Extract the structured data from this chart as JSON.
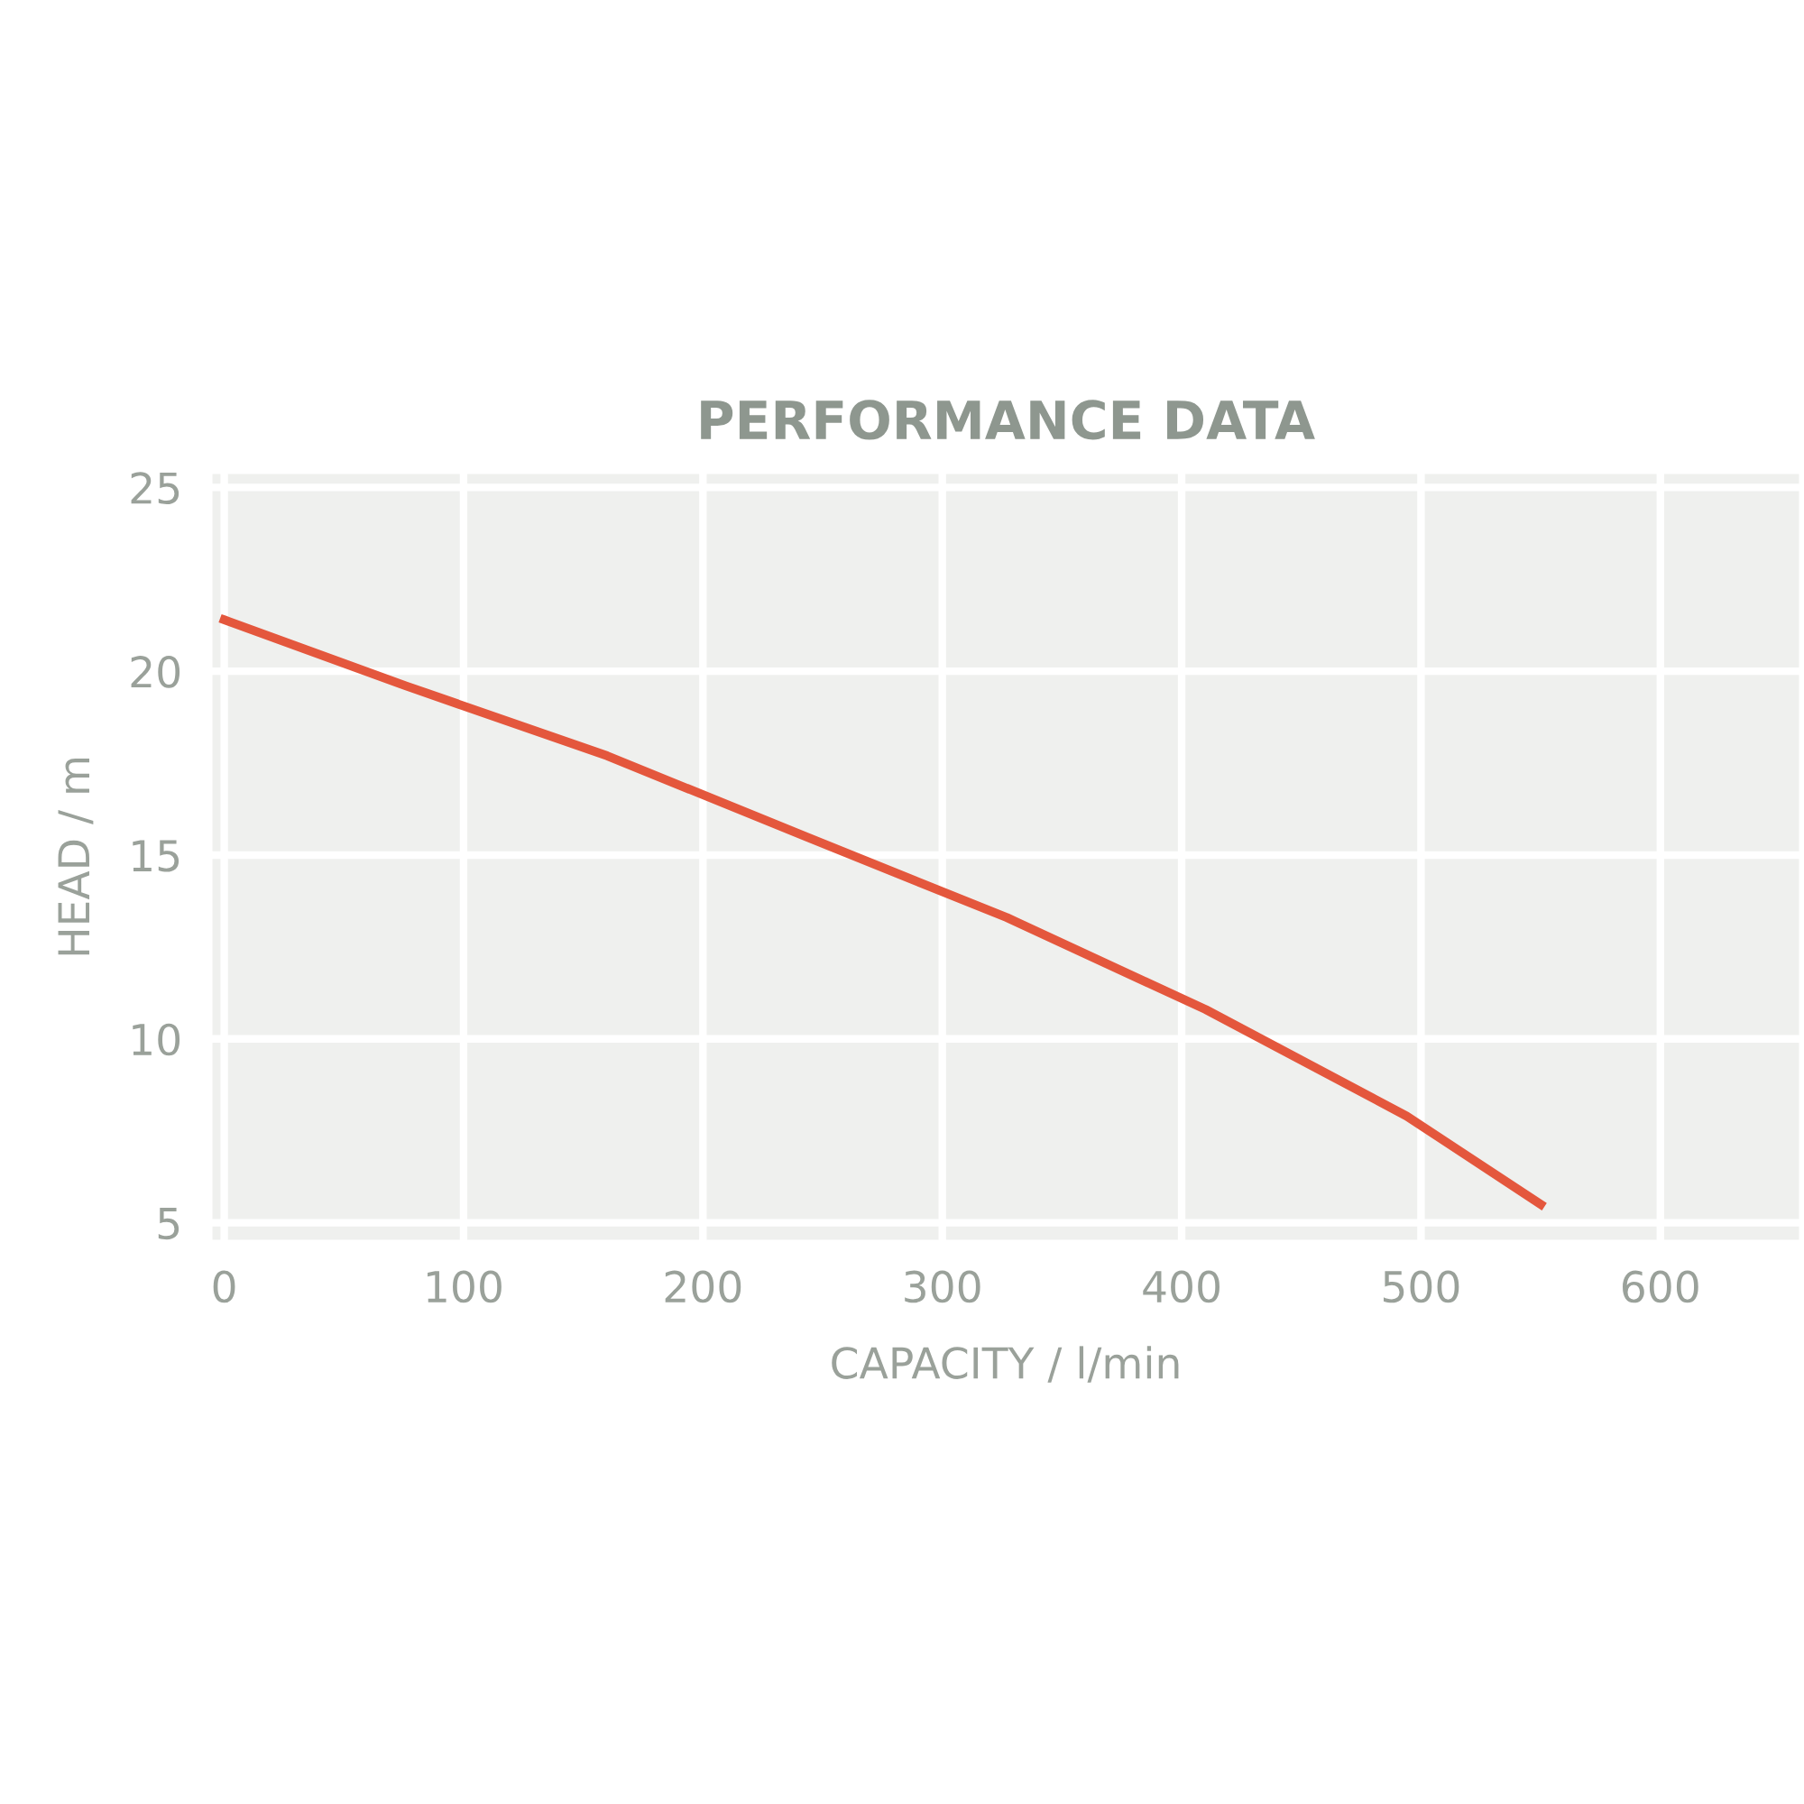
{
  "chart_data": {
    "type": "line",
    "title": "PERFORMANCE DATA",
    "xlabel": "CAPACITY / l/min",
    "ylabel": "HEAD / m",
    "x": [
      0,
      76,
      160,
      243,
      327,
      410,
      494,
      550
    ],
    "series": [
      {
        "color": "#e4573d",
        "values": [
          21.4,
          19.6,
          17.7,
          15.5,
          13.3,
          10.8,
          7.9,
          5.5
        ]
      }
    ],
    "xlim": [
      -7,
      660
    ],
    "ylim": [
      4.4,
      25.5
    ],
    "xticks": [
      0,
      100,
      200,
      300,
      400,
      500,
      600
    ],
    "yticks": [
      5,
      10,
      15,
      20,
      25
    ],
    "grid": true,
    "legend": false,
    "marker": "none",
    "line_style": "solid"
  }
}
